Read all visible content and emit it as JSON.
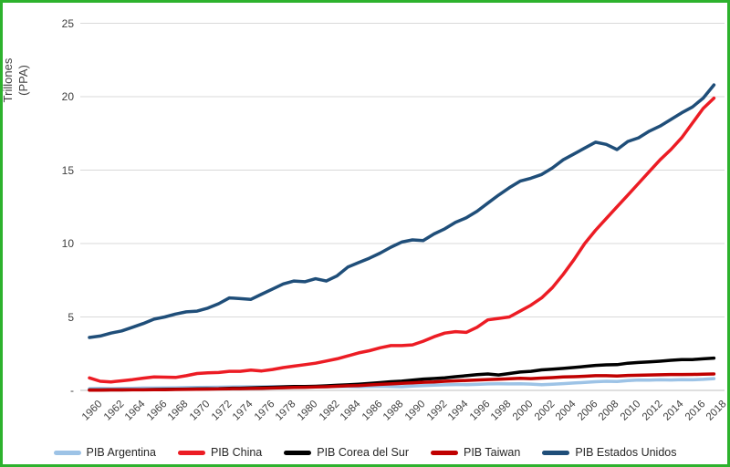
{
  "figure": {
    "border_color": "#2db22d",
    "background": "#ffffff",
    "gridline_color": "#d9d9d9",
    "axis_line_color": "#bfbfbf",
    "text_color": "#3f3f3f"
  },
  "y_axis": {
    "title_line1": "Trillones",
    "title_line2": "(PPA)",
    "tick_labels": [
      "25",
      "20",
      "15",
      "10",
      "5",
      "-"
    ],
    "tick_values": [
      25,
      20,
      15,
      10,
      5,
      0
    ]
  },
  "x_axis": {
    "tick_labels": [
      "1960",
      "1962",
      "1964",
      "1966",
      "1968",
      "1970",
      "1972",
      "1974",
      "1976",
      "1978",
      "1980",
      "1982",
      "1984",
      "1986",
      "1988",
      "1990",
      "1992",
      "1994",
      "1996",
      "1998",
      "2000",
      "2002",
      "2004",
      "2006",
      "2008",
      "2010",
      "2012",
      "2014",
      "2016",
      "2018"
    ]
  },
  "legend": {
    "items": [
      {
        "label": "PIB Argentina",
        "color": "#9DC3E6"
      },
      {
        "label": "PIB China",
        "color": "#EC1C24"
      },
      {
        "label": "PIB Corea del Sur",
        "color": "#000000"
      },
      {
        "label": "PIB Taiwan",
        "color": "#C00000"
      },
      {
        "label": "PIB Estados Unidos",
        "color": "#1F4E79"
      }
    ]
  },
  "chart_data": {
    "type": "line",
    "title": "",
    "xlabel": "",
    "ylabel": "Trillones (PPA)",
    "ylim": [
      0,
      25
    ],
    "xlim": [
      1960,
      2018
    ],
    "grid": true,
    "legend_position": "bottom",
    "years": [
      1960,
      1961,
      1962,
      1963,
      1964,
      1965,
      1966,
      1967,
      1968,
      1969,
      1970,
      1971,
      1972,
      1973,
      1974,
      1975,
      1976,
      1977,
      1978,
      1979,
      1980,
      1981,
      1982,
      1983,
      1984,
      1985,
      1986,
      1987,
      1988,
      1989,
      1990,
      1991,
      1992,
      1993,
      1994,
      1995,
      1996,
      1997,
      1998,
      1999,
      2000,
      2001,
      2002,
      2003,
      2004,
      2005,
      2006,
      2007,
      2008,
      2009,
      2010,
      2011,
      2012,
      2013,
      2014,
      2015,
      2016,
      2017,
      2018
    ],
    "series": [
      {
        "name": "PIB Argentina",
        "color": "#9DC3E6",
        "values": [
          0.12,
          0.13,
          0.12,
          0.13,
          0.14,
          0.16,
          0.16,
          0.17,
          0.18,
          0.19,
          0.2,
          0.21,
          0.22,
          0.23,
          0.24,
          0.24,
          0.24,
          0.26,
          0.25,
          0.27,
          0.27,
          0.26,
          0.25,
          0.26,
          0.27,
          0.25,
          0.27,
          0.28,
          0.27,
          0.25,
          0.3,
          0.33,
          0.36,
          0.38,
          0.4,
          0.39,
          0.41,
          0.44,
          0.45,
          0.44,
          0.45,
          0.43,
          0.39,
          0.42,
          0.46,
          0.5,
          0.54,
          0.59,
          0.62,
          0.61,
          0.67,
          0.71,
          0.7,
          0.72,
          0.71,
          0.73,
          0.72,
          0.75,
          0.8
        ]
      },
      {
        "name": "PIB China",
        "color": "#EC1C24",
        "values": [
          0.85,
          0.62,
          0.58,
          0.65,
          0.73,
          0.83,
          0.92,
          0.9,
          0.88,
          1.0,
          1.15,
          1.2,
          1.22,
          1.3,
          1.3,
          1.38,
          1.32,
          1.42,
          1.55,
          1.65,
          1.75,
          1.85,
          2.0,
          2.15,
          2.35,
          2.55,
          2.7,
          2.9,
          3.05,
          3.05,
          3.1,
          3.35,
          3.65,
          3.9,
          4.0,
          3.95,
          4.3,
          4.8,
          4.9,
          5.0,
          5.4,
          5.8,
          6.3,
          7.0,
          7.9,
          8.9,
          10.0,
          10.9,
          11.7,
          12.5,
          13.3,
          14.1,
          14.9,
          15.7,
          16.4,
          17.2,
          18.2,
          19.2,
          19.9
        ]
      },
      {
        "name": "PIB Corea del Sur",
        "color": "#000000",
        "values": [
          0.03,
          0.03,
          0.04,
          0.04,
          0.05,
          0.05,
          0.06,
          0.07,
          0.08,
          0.09,
          0.1,
          0.11,
          0.12,
          0.14,
          0.15,
          0.17,
          0.19,
          0.21,
          0.24,
          0.26,
          0.26,
          0.28,
          0.31,
          0.35,
          0.38,
          0.42,
          0.47,
          0.53,
          0.59,
          0.63,
          0.7,
          0.77,
          0.81,
          0.86,
          0.93,
          1.0,
          1.07,
          1.12,
          1.05,
          1.15,
          1.25,
          1.3,
          1.4,
          1.44,
          1.5,
          1.56,
          1.63,
          1.7,
          1.74,
          1.75,
          1.85,
          1.9,
          1.94,
          1.99,
          2.05,
          2.1,
          2.1,
          2.15,
          2.2
        ]
      },
      {
        "name": "PIB Taiwan",
        "color": "#C00000",
        "values": [
          0.02,
          0.02,
          0.03,
          0.03,
          0.04,
          0.04,
          0.05,
          0.05,
          0.06,
          0.07,
          0.08,
          0.09,
          0.1,
          0.11,
          0.12,
          0.13,
          0.14,
          0.16,
          0.18,
          0.2,
          0.21,
          0.23,
          0.25,
          0.28,
          0.31,
          0.33,
          0.37,
          0.41,
          0.44,
          0.48,
          0.51,
          0.55,
          0.58,
          0.62,
          0.65,
          0.68,
          0.71,
          0.74,
          0.76,
          0.79,
          0.82,
          0.8,
          0.84,
          0.87,
          0.91,
          0.93,
          0.96,
          1.0,
          1.0,
          0.98,
          1.02,
          1.03,
          1.05,
          1.06,
          1.08,
          1.08,
          1.09,
          1.1,
          1.12
        ]
      },
      {
        "name": "PIB Estados Unidos",
        "color": "#1F4E79",
        "values": [
          3.6,
          3.7,
          3.9,
          4.05,
          4.3,
          4.55,
          4.85,
          5.0,
          5.2,
          5.35,
          5.4,
          5.6,
          5.9,
          6.3,
          6.25,
          6.2,
          6.55,
          6.9,
          7.25,
          7.45,
          7.4,
          7.6,
          7.45,
          7.8,
          8.4,
          8.7,
          9.0,
          9.35,
          9.75,
          10.1,
          10.25,
          10.2,
          10.65,
          11.0,
          11.45,
          11.75,
          12.2,
          12.75,
          13.3,
          13.8,
          14.25,
          14.45,
          14.7,
          15.15,
          15.7,
          16.1,
          16.5,
          16.9,
          16.75,
          16.4,
          16.95,
          17.2,
          17.65,
          18.0,
          18.45,
          18.9,
          19.3,
          19.9,
          20.8
        ]
      }
    ]
  }
}
